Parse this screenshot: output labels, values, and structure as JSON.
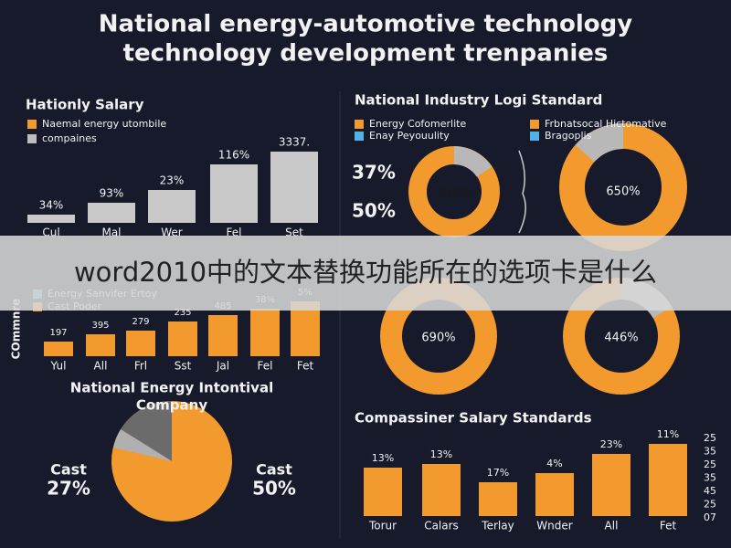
{
  "header": {
    "title_lines": [
      "National energy-automotive technology",
      "technology development trenpanies"
    ]
  },
  "panel_top_left": {
    "title": "Hationly Salary",
    "legend": [
      "Naemal energy utombile",
      "compaines"
    ],
    "bar_labels": [
      "34%",
      "93%",
      "23%",
      "116%",
      "3337."
    ],
    "categories": [
      "Cul",
      "Mal",
      "Wer",
      "Fel",
      "Set"
    ]
  },
  "panel_top_right": {
    "title": "National Industry Logi Standard",
    "legend": [
      "Energy Cofomerlite",
      "Frbnatsocal Hictomative",
      "Enay Peyouulity",
      "Bragoplis"
    ],
    "side_labels": [
      "37%",
      "50%"
    ],
    "donut_labels": [
      "30%",
      "650%"
    ]
  },
  "panel_middle_left": {
    "side_label": "COmmnre",
    "legend": [
      "Energy Sanvifer Ertoy",
      "Cast Poder"
    ],
    "bar_labels": [
      "197",
      "395",
      "279",
      "235",
      "485",
      "38%",
      "5%"
    ],
    "categories": [
      "Yul",
      "All",
      "Frl",
      "Sst",
      "Jal",
      "Fel",
      "Fet"
    ]
  },
  "panel_middle_right": {
    "donut_labels": [
      "690%",
      "446%"
    ]
  },
  "panel_bottom_left": {
    "title_lines": [
      "National Energy Intontival",
      "Company"
    ],
    "left": [
      "Cast",
      "27%"
    ],
    "right": [
      "Cast",
      "50%"
    ]
  },
  "panel_bottom_right": {
    "title": "Compassiner Salary Standards",
    "bar_labels": [
      "13%",
      "13%",
      "17%",
      "4%",
      "23%",
      "11%"
    ],
    "categories": [
      "Torur",
      "Calars",
      "Terlay",
      "Wnder",
      "All",
      "Fet"
    ],
    "axis_labels": [
      "25",
      "35",
      "25",
      "35",
      "45",
      "25",
      "07"
    ]
  },
  "banner": {
    "text": "word2010中的文本替换功能所在的选项卡是什么"
  }
}
